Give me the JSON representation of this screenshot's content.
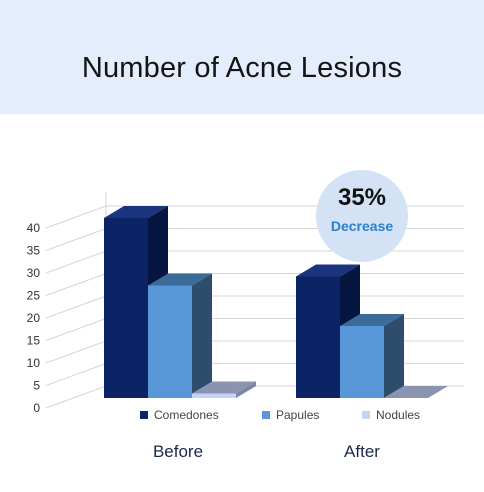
{
  "title": "Number of Acne Lesions",
  "badge": {
    "percent": "35%",
    "label": "Decrease"
  },
  "colors": {
    "comedones": "#0c2466",
    "papules": "#5898d8",
    "nodules": "#c6d3f2",
    "badge_bg": "#d3e2f5",
    "badge_text": "#2d7fd0",
    "header_bg": "#e3edfb"
  },
  "chart_data": {
    "type": "bar",
    "categories": [
      "Before",
      "After"
    ],
    "series": [
      {
        "name": "Comedones",
        "values": [
          40,
          27
        ]
      },
      {
        "name": "Papules",
        "values": [
          25,
          16
        ]
      },
      {
        "name": "Nodules",
        "values": [
          1,
          0
        ]
      }
    ],
    "ylim": [
      0,
      40
    ],
    "yticks": [
      0,
      5,
      10,
      15,
      20,
      25,
      30,
      35,
      40
    ],
    "grid": true,
    "legend_position": "bottom",
    "style": "3d"
  }
}
